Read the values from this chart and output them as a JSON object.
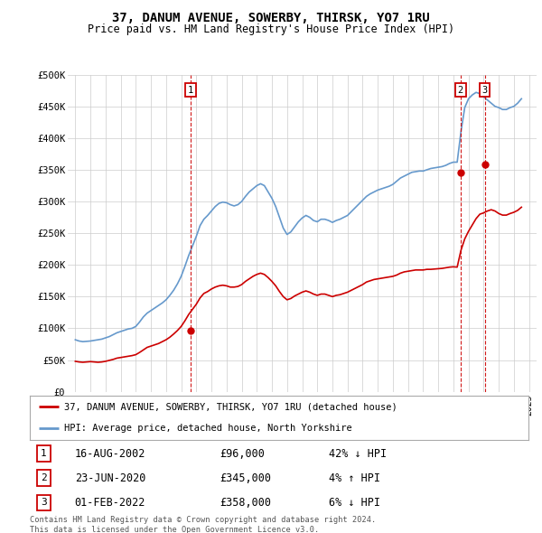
{
  "title": "37, DANUM AVENUE, SOWERBY, THIRSK, YO7 1RU",
  "subtitle": "Price paid vs. HM Land Registry's House Price Index (HPI)",
  "ylim": [
    0,
    500000
  ],
  "yticks": [
    0,
    50000,
    100000,
    150000,
    200000,
    250000,
    300000,
    350000,
    400000,
    450000,
    500000
  ],
  "ytick_labels": [
    "£0",
    "£50K",
    "£100K",
    "£150K",
    "£200K",
    "£250K",
    "£300K",
    "£350K",
    "£400K",
    "£450K",
    "£500K"
  ],
  "xlim_start": 1994.5,
  "xlim_end": 2025.5,
  "red_color": "#cc0000",
  "blue_color": "#6699cc",
  "transactions": [
    {
      "num": 1,
      "year": 2002.63,
      "price": 96000,
      "date": "16-AUG-2002",
      "price_str": "£96,000",
      "hpi_str": "42% ↓ HPI"
    },
    {
      "num": 2,
      "year": 2020.47,
      "price": 345000,
      "date": "23-JUN-2020",
      "price_str": "£345,000",
      "hpi_str": "4% ↑ HPI"
    },
    {
      "num": 3,
      "year": 2022.08,
      "price": 358000,
      "date": "01-FEB-2022",
      "price_str": "£358,000",
      "hpi_str": "6% ↓ HPI"
    }
  ],
  "hpi_data": {
    "years": [
      1995.0,
      1995.25,
      1995.5,
      1995.75,
      1996.0,
      1996.25,
      1996.5,
      1996.75,
      1997.0,
      1997.25,
      1997.5,
      1997.75,
      1998.0,
      1998.25,
      1998.5,
      1998.75,
      1999.0,
      1999.25,
      1999.5,
      1999.75,
      2000.0,
      2000.25,
      2000.5,
      2000.75,
      2001.0,
      2001.25,
      2001.5,
      2001.75,
      2002.0,
      2002.25,
      2002.5,
      2002.75,
      2003.0,
      2003.25,
      2003.5,
      2003.75,
      2004.0,
      2004.25,
      2004.5,
      2004.75,
      2005.0,
      2005.25,
      2005.5,
      2005.75,
      2006.0,
      2006.25,
      2006.5,
      2006.75,
      2007.0,
      2007.25,
      2007.5,
      2007.75,
      2008.0,
      2008.25,
      2008.5,
      2008.75,
      2009.0,
      2009.25,
      2009.5,
      2009.75,
      2010.0,
      2010.25,
      2010.5,
      2010.75,
      2011.0,
      2011.25,
      2011.5,
      2011.75,
      2012.0,
      2012.25,
      2012.5,
      2012.75,
      2013.0,
      2013.25,
      2013.5,
      2013.75,
      2014.0,
      2014.25,
      2014.5,
      2014.75,
      2015.0,
      2015.25,
      2015.5,
      2015.75,
      2016.0,
      2016.25,
      2016.5,
      2016.75,
      2017.0,
      2017.25,
      2017.5,
      2017.75,
      2018.0,
      2018.25,
      2018.5,
      2018.75,
      2019.0,
      2019.25,
      2019.5,
      2019.75,
      2020.0,
      2020.25,
      2020.5,
      2020.75,
      2021.0,
      2021.25,
      2021.5,
      2021.75,
      2022.0,
      2022.25,
      2022.5,
      2022.75,
      2023.0,
      2023.25,
      2023.5,
      2023.75,
      2024.0,
      2024.25,
      2024.5
    ],
    "values": [
      82000,
      80000,
      79000,
      79500,
      80000,
      81000,
      82000,
      83000,
      85000,
      87000,
      90000,
      93000,
      95000,
      97000,
      99000,
      100000,
      103000,
      110000,
      118000,
      124000,
      128000,
      132000,
      136000,
      140000,
      145000,
      152000,
      160000,
      170000,
      182000,
      198000,
      215000,
      230000,
      245000,
      262000,
      272000,
      278000,
      285000,
      292000,
      297000,
      299000,
      298000,
      295000,
      293000,
      295000,
      300000,
      308000,
      315000,
      320000,
      325000,
      328000,
      325000,
      315000,
      305000,
      292000,
      275000,
      258000,
      248000,
      252000,
      260000,
      268000,
      274000,
      278000,
      275000,
      270000,
      268000,
      272000,
      272000,
      270000,
      267000,
      270000,
      272000,
      275000,
      278000,
      284000,
      290000,
      296000,
      302000,
      308000,
      312000,
      315000,
      318000,
      320000,
      322000,
      324000,
      327000,
      332000,
      337000,
      340000,
      343000,
      346000,
      347000,
      348000,
      348000,
      350000,
      352000,
      353000,
      354000,
      355000,
      357000,
      360000,
      362000,
      362000,
      410000,
      448000,
      462000,
      468000,
      472000,
      470000,
      465000,
      460000,
      455000,
      450000,
      448000,
      445000,
      445000,
      448000,
      450000,
      455000,
      462000
    ]
  },
  "red_data": {
    "years": [
      1995.0,
      1995.25,
      1995.5,
      1995.75,
      1996.0,
      1996.25,
      1996.5,
      1996.75,
      1997.0,
      1997.25,
      1997.5,
      1997.75,
      1998.0,
      1998.25,
      1998.5,
      1998.75,
      1999.0,
      1999.25,
      1999.5,
      1999.75,
      2000.0,
      2000.25,
      2000.5,
      2000.75,
      2001.0,
      2001.25,
      2001.5,
      2001.75,
      2002.0,
      2002.25,
      2002.5,
      2002.75,
      2003.0,
      2003.25,
      2003.5,
      2003.75,
      2004.0,
      2004.25,
      2004.5,
      2004.75,
      2005.0,
      2005.25,
      2005.5,
      2005.75,
      2006.0,
      2006.25,
      2006.5,
      2006.75,
      2007.0,
      2007.25,
      2007.5,
      2007.75,
      2008.0,
      2008.25,
      2008.5,
      2008.75,
      2009.0,
      2009.25,
      2009.5,
      2009.75,
      2010.0,
      2010.25,
      2010.5,
      2010.75,
      2011.0,
      2011.25,
      2011.5,
      2011.75,
      2012.0,
      2012.25,
      2012.5,
      2012.75,
      2013.0,
      2013.25,
      2013.5,
      2013.75,
      2014.0,
      2014.25,
      2014.5,
      2014.75,
      2015.0,
      2015.25,
      2015.5,
      2015.75,
      2016.0,
      2016.25,
      2016.5,
      2016.75,
      2017.0,
      2017.25,
      2017.5,
      2017.75,
      2018.0,
      2018.25,
      2018.5,
      2018.75,
      2019.0,
      2019.25,
      2019.5,
      2019.75,
      2020.0,
      2020.25,
      2020.5,
      2020.75,
      2021.0,
      2021.25,
      2021.5,
      2021.75,
      2022.0,
      2022.25,
      2022.5,
      2022.75,
      2023.0,
      2023.25,
      2023.5,
      2023.75,
      2024.0,
      2024.25,
      2024.5
    ],
    "values": [
      48000,
      47000,
      46500,
      47000,
      47500,
      47000,
      46500,
      47000,
      48000,
      49500,
      51000,
      53000,
      54000,
      55000,
      56000,
      57000,
      58500,
      62000,
      66000,
      70000,
      72000,
      74000,
      76000,
      79000,
      82000,
      86000,
      91000,
      96500,
      103000,
      112000,
      122000,
      130000,
      138000,
      148000,
      155000,
      158000,
      162000,
      165000,
      167000,
      168000,
      167000,
      165000,
      165000,
      166000,
      169000,
      174000,
      178000,
      182000,
      185000,
      187000,
      185000,
      180000,
      174000,
      167000,
      158000,
      150000,
      145000,
      147000,
      151000,
      154000,
      157000,
      159000,
      157000,
      154000,
      152000,
      154000,
      154000,
      152000,
      150000,
      152000,
      153000,
      155000,
      157000,
      160000,
      163000,
      166000,
      169000,
      173000,
      175000,
      177000,
      178000,
      179000,
      180000,
      181000,
      182000,
      184000,
      187000,
      189000,
      190000,
      191000,
      192000,
      192000,
      192000,
      193000,
      193000,
      193500,
      194000,
      194500,
      195500,
      196500,
      197000,
      196500,
      223000,
      241000,
      253000,
      263000,
      273000,
      280000,
      282000,
      285000,
      287000,
      285000,
      281000,
      278500,
      278500,
      281000,
      283000,
      286000,
      291000
    ]
  },
  "legend_entries": [
    {
      "label": "37, DANUM AVENUE, SOWERBY, THIRSK, YO7 1RU (detached house)",
      "color": "#cc0000"
    },
    {
      "label": "HPI: Average price, detached house, North Yorkshire",
      "color": "#6699cc"
    }
  ],
  "footer": "Contains HM Land Registry data © Crown copyright and database right 2024.\nThis data is licensed under the Open Government Licence v3.0.",
  "bg_color": "#ffffff",
  "grid_color": "#cccccc"
}
